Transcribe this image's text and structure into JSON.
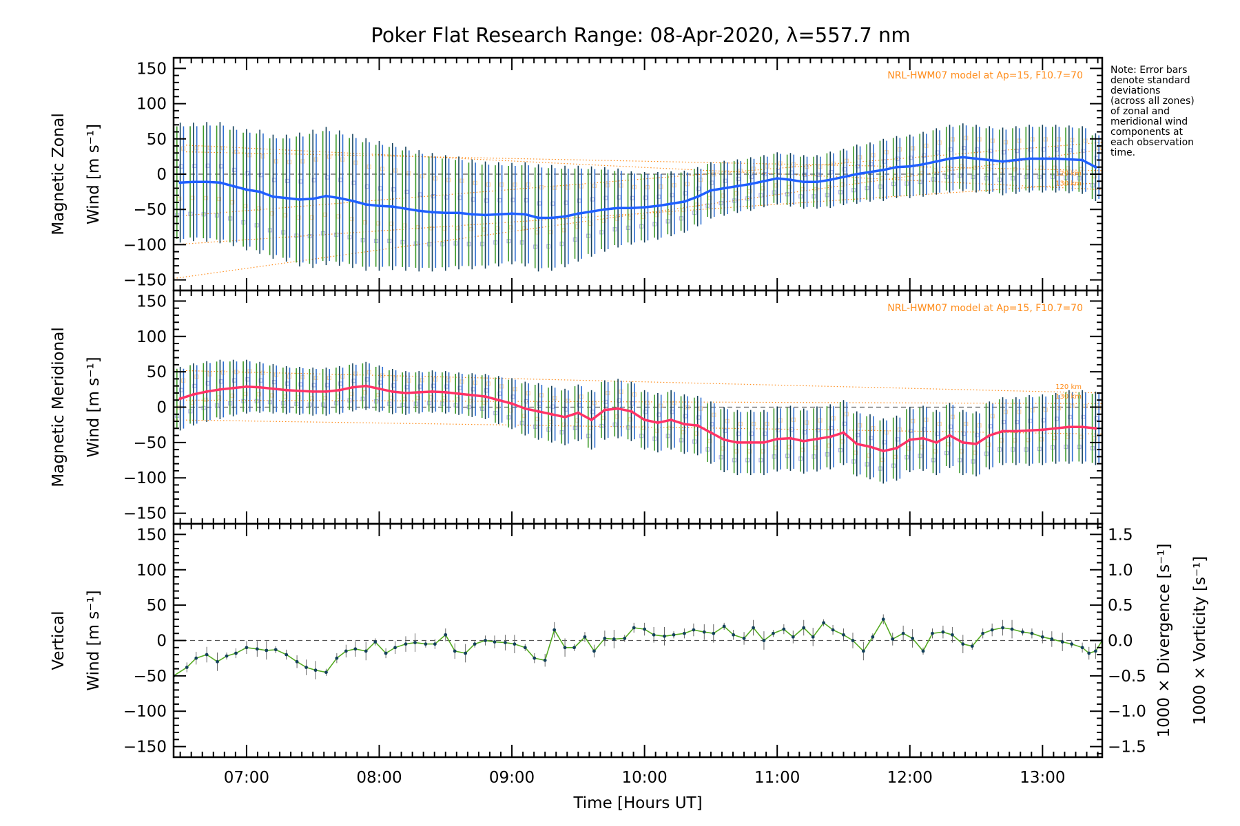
{
  "title": "Poker Flat Research Range: 08-Apr-2020, λ=557.7 nm",
  "note": [
    "Note: Error bars",
    "denote standard",
    "deviations",
    "(across all zones)",
    "of zonal and",
    "meridional wind",
    "components at",
    "each observation",
    "time."
  ],
  "model_label": "NRL-HWM07 model at Ap=15, F10.7=70",
  "model_alt_labels": [
    "120 km",
    "130 km"
  ],
  "colors": {
    "zonal_mean": "#1f5fff",
    "meridional_mean": "#ff3366",
    "vertical": "#55aa22",
    "divergence": "#5aaed8",
    "vorticity": "#ff3d7f",
    "model": "#ff8c1a",
    "errbar_dark": "#13405a",
    "errbar_green": "#3d9a2a",
    "errbar_blue": "#2f6fd0",
    "zone_purple": "#9a9ae0",
    "zone_orange": "#ffcc88"
  },
  "chart_data": [
    {
      "type": "line",
      "panel": "zonal",
      "ylabel": [
        "Magnetic Zonal",
        "Wind [m s⁻¹]"
      ],
      "ylim": [
        -165,
        165
      ],
      "yticks": [
        -150,
        -100,
        -50,
        0,
        50,
        100,
        150
      ],
      "xlim": [
        6.45,
        13.45
      ],
      "x": [
        6.5,
        6.6,
        6.7,
        6.8,
        6.9,
        7.0,
        7.1,
        7.2,
        7.3,
        7.4,
        7.5,
        7.6,
        7.7,
        7.8,
        7.9,
        8.0,
        8.1,
        8.2,
        8.3,
        8.4,
        8.5,
        8.6,
        8.7,
        8.8,
        8.9,
        9.0,
        9.1,
        9.2,
        9.3,
        9.4,
        9.5,
        9.6,
        9.7,
        9.8,
        9.9,
        10.0,
        10.1,
        10.2,
        10.3,
        10.4,
        10.5,
        10.6,
        10.7,
        10.8,
        10.9,
        11.0,
        11.1,
        11.2,
        11.3,
        11.4,
        11.5,
        11.6,
        11.7,
        11.8,
        11.9,
        12.0,
        12.1,
        12.2,
        12.3,
        12.4,
        12.5,
        12.6,
        12.7,
        12.8,
        12.9,
        13.0,
        13.1,
        13.2,
        13.3,
        13.4
      ],
      "series": [
        {
          "kind": "mean",
          "values": [
            -12,
            -11,
            -11,
            -12,
            -17,
            -22,
            -25,
            -32,
            -34,
            -36,
            -35,
            -31,
            -34,
            -38,
            -43,
            -45,
            -46,
            -49,
            -52,
            -54,
            -55,
            -55,
            -57,
            -58,
            -57,
            -56,
            -57,
            -62,
            -62,
            -60,
            -56,
            -53,
            -50,
            -48,
            -48,
            -47,
            -45,
            -42,
            -39,
            -32,
            -23,
            -20,
            -17,
            -14,
            -10,
            -6,
            -8,
            -11,
            -11,
            -8,
            -4,
            0,
            3,
            6,
            10,
            11,
            14,
            18,
            22,
            24,
            22,
            20,
            18,
            20,
            22,
            22,
            22,
            21,
            20,
            10
          ]
        },
        {
          "kind": "error",
          "values": [
            85,
            84,
            85,
            86,
            85,
            86,
            88,
            88,
            90,
            95,
            98,
            98,
            96,
            95,
            94,
            92,
            90,
            88,
            86,
            84,
            82,
            80,
            78,
            76,
            74,
            72,
            74,
            76,
            75,
            72,
            68,
            64,
            60,
            56,
            52,
            50,
            48,
            46,
            44,
            42,
            40,
            39,
            38,
            38,
            37,
            37,
            38,
            38,
            38,
            40,
            40,
            42,
            42,
            44,
            44,
            45,
            46,
            47,
            48,
            48,
            48,
            48,
            48,
            48,
            48,
            48,
            48,
            48,
            48,
            48
          ]
        }
      ],
      "model_lines": [
        {
          "x": [
            6.45,
            13.45
          ],
          "values": [
            42,
            -22
          ]
        },
        {
          "x": [
            6.45,
            13.45
          ],
          "values": [
            32,
            5
          ]
        },
        {
          "x": [
            6.45,
            13.45
          ],
          "values": [
            -60,
            45
          ]
        },
        {
          "x": [
            6.45,
            13.45
          ],
          "values": [
            -148,
            35
          ]
        },
        {
          "x": [
            6.45,
            13.45
          ],
          "values": [
            -100,
            -12
          ]
        }
      ]
    },
    {
      "type": "line",
      "panel": "meridional",
      "ylabel": [
        "Magnetic Meridional",
        "Wind [m s⁻¹]"
      ],
      "ylim": [
        -165,
        165
      ],
      "yticks": [
        -150,
        -100,
        -50,
        0,
        50,
        100,
        150
      ],
      "xlim": [
        6.45,
        13.45
      ],
      "x": [
        6.5,
        6.6,
        6.7,
        6.8,
        6.9,
        7.0,
        7.1,
        7.2,
        7.3,
        7.4,
        7.5,
        7.6,
        7.7,
        7.8,
        7.9,
        8.0,
        8.1,
        8.2,
        8.3,
        8.4,
        8.5,
        8.6,
        8.7,
        8.8,
        8.9,
        9.0,
        9.1,
        9.2,
        9.3,
        9.4,
        9.5,
        9.6,
        9.7,
        9.8,
        9.9,
        10.0,
        10.1,
        10.2,
        10.3,
        10.4,
        10.5,
        10.6,
        10.7,
        10.8,
        10.9,
        11.0,
        11.1,
        11.2,
        11.3,
        11.4,
        11.5,
        11.6,
        11.7,
        11.8,
        11.9,
        12.0,
        12.1,
        12.2,
        12.3,
        12.4,
        12.5,
        12.6,
        12.7,
        12.8,
        12.9,
        13.0,
        13.1,
        13.2,
        13.3,
        13.4
      ],
      "series": [
        {
          "kind": "mean",
          "values": [
            12,
            18,
            22,
            25,
            27,
            29,
            28,
            26,
            24,
            23,
            22,
            22,
            24,
            28,
            30,
            26,
            22,
            20,
            21,
            22,
            21,
            19,
            17,
            15,
            10,
            5,
            -2,
            -6,
            -10,
            -14,
            -8,
            -18,
            -4,
            -2,
            -6,
            -18,
            -22,
            -18,
            -24,
            -26,
            -36,
            -46,
            -50,
            -50,
            -50,
            -45,
            -44,
            -48,
            -45,
            -42,
            -36,
            -52,
            -56,
            -62,
            -58,
            -46,
            -44,
            -50,
            -40,
            -50,
            -52,
            -40,
            -34,
            -34,
            -33,
            -32,
            -30,
            -28,
            -28,
            -30
          ]
        },
        {
          "kind": "error",
          "values": [
            45,
            44,
            43,
            42,
            40,
            38,
            36,
            35,
            34,
            34,
            34,
            34,
            34,
            34,
            34,
            33,
            32,
            31,
            30,
            30,
            30,
            30,
            31,
            32,
            34,
            36,
            38,
            40,
            40,
            40,
            40,
            42,
            42,
            42,
            42,
            42,
            42,
            42,
            42,
            42,
            44,
            46,
            46,
            46,
            46,
            46,
            46,
            46,
            46,
            46,
            46,
            46,
            46,
            46,
            46,
            46,
            46,
            46,
            46,
            46,
            46,
            48,
            48,
            48,
            50,
            50,
            50,
            52,
            52,
            52
          ]
        }
      ],
      "model_lines": [
        {
          "x": [
            6.45,
            13.45
          ],
          "values": [
            52,
            20
          ]
        },
        {
          "x": [
            6.45,
            13.45
          ],
          "values": [
            10,
            5
          ]
        },
        {
          "x": [
            6.45,
            13.45
          ],
          "values": [
            -18,
            -38
          ]
        }
      ]
    },
    {
      "type": "line",
      "panel": "vertical",
      "ylabel": [
        "Vertical",
        "Wind [m s⁻¹]"
      ],
      "ylim": [
        -165,
        165
      ],
      "yticks": [
        -150,
        -100,
        -50,
        0,
        50,
        100,
        150
      ],
      "y2label": [
        "1000 × Divergence [s⁻¹]",
        "1000 × Vorticity [s⁻¹]"
      ],
      "y2lim": [
        -1.65,
        1.65
      ],
      "y2ticks": [
        -1.5,
        -1.0,
        -0.5,
        0.0,
        0.5,
        1.0,
        1.5
      ],
      "y2ticklabels": [
        "−1.5",
        "−1.0",
        "−0.5",
        "0.0",
        "0.5",
        "1.0",
        "1.5"
      ],
      "xlim": [
        6.45,
        13.45
      ],
      "xticks": [
        7,
        8,
        9,
        10,
        11,
        12,
        13
      ],
      "xticklabels": [
        "07:00",
        "08:00",
        "09:00",
        "10:00",
        "11:00",
        "12:00",
        "13:00"
      ],
      "xlabel": "Time [Hours UT]",
      "x": [
        6.45,
        6.55,
        6.62,
        6.7,
        6.78,
        6.85,
        6.92,
        7.0,
        7.08,
        7.15,
        7.22,
        7.3,
        7.38,
        7.45,
        7.52,
        7.6,
        7.68,
        7.75,
        7.82,
        7.9,
        7.97,
        8.05,
        8.12,
        8.2,
        8.27,
        8.35,
        8.42,
        8.5,
        8.57,
        8.65,
        8.72,
        8.8,
        8.87,
        8.95,
        9.02,
        9.1,
        9.17,
        9.25,
        9.32,
        9.4,
        9.47,
        9.55,
        9.62,
        9.7,
        9.77,
        9.85,
        9.92,
        10.0,
        10.07,
        10.15,
        10.22,
        10.3,
        10.37,
        10.45,
        10.52,
        10.6,
        10.67,
        10.75,
        10.82,
        10.9,
        10.97,
        11.05,
        11.12,
        11.2,
        11.27,
        11.35,
        11.42,
        11.5,
        11.57,
        11.65,
        11.72,
        11.8,
        11.87,
        11.95,
        12.02,
        12.1,
        12.17,
        12.25,
        12.32,
        12.4,
        12.47,
        12.55,
        12.62,
        12.7,
        12.77,
        12.85,
        12.92,
        13.0,
        13.07,
        13.15,
        13.22,
        13.3,
        13.35,
        13.4,
        13.45
      ],
      "series": [
        {
          "name": "",
          "values": [
            -50,
            -38,
            -25,
            -20,
            -30,
            -22,
            -18,
            -10,
            -12,
            -14,
            -13,
            -20,
            -30,
            -38,
            -42,
            -45,
            -25,
            -15,
            -12,
            -15,
            -2,
            -18,
            -10,
            -5,
            -3,
            -5,
            -5,
            8,
            -15,
            -18,
            -5,
            0,
            -2,
            -3,
            -5,
            -10,
            -25,
            -28,
            15,
            -10,
            -10,
            5,
            -15,
            3,
            2,
            3,
            18,
            16,
            8,
            6,
            8,
            10,
            15,
            12,
            10,
            20,
            8,
            3,
            18,
            0,
            10,
            16,
            5,
            18,
            5,
            25,
            15,
            8,
            0,
            -15,
            5,
            30,
            2,
            10,
            3,
            -15,
            10,
            12,
            8,
            -5,
            -8,
            10,
            15,
            18,
            16,
            12,
            10,
            5,
            2,
            -2,
            -5,
            -10,
            -18,
            -15,
            0
          ]
        }
      ]
    }
  ]
}
